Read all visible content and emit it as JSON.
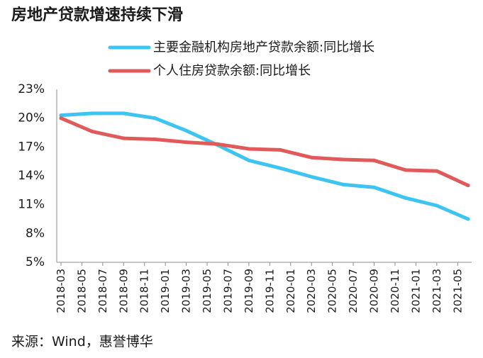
{
  "source": "来源：Wind，惠誉博华",
  "chart_data": {
    "type": "line",
    "title": "房地产贷款增速持续下滑",
    "legend_position": "top",
    "grid": false,
    "xlim": [
      "2018-03",
      "2021-06"
    ],
    "ylim": [
      5,
      23
    ],
    "y_ticks": [
      23,
      20,
      17,
      14,
      11,
      8,
      5
    ],
    "y_tick_labels": [
      "23%",
      "20%",
      "17%",
      "14%",
      "11%",
      "8%",
      "5%"
    ],
    "x_tick_labels": [
      "2018-03",
      "2018-05",
      "2018-07",
      "2018-09",
      "2018-11",
      "2019-01",
      "2019-03",
      "2019-05",
      "2019-07",
      "2019-09",
      "2019-11",
      "2020-01",
      "2020-03",
      "2020-05",
      "2020-07",
      "2020-09",
      "2020-11",
      "2021-01",
      "2021-03",
      "2021-05"
    ],
    "x": [
      "2018-03",
      "2018-06",
      "2018-09",
      "2018-12",
      "2019-03",
      "2019-06",
      "2019-09",
      "2019-12",
      "2020-03",
      "2020-06",
      "2020-09",
      "2020-12",
      "2021-03",
      "2021-06"
    ],
    "series": [
      {
        "name": "主要金融机构房地产贷款余额:同比增长",
        "color": "#3EC4F0",
        "values": [
          20.3,
          20.5,
          20.5,
          20.0,
          18.7,
          17.2,
          15.6,
          14.8,
          13.9,
          13.1,
          12.8,
          11.7,
          10.9,
          9.5
        ]
      },
      {
        "name": "个人住房贷款余额:同比增长",
        "color": "#E05A5A",
        "values": [
          20.0,
          18.6,
          17.9,
          17.8,
          17.5,
          17.3,
          16.8,
          16.7,
          15.9,
          15.7,
          15.6,
          14.6,
          14.5,
          13.0
        ]
      }
    ]
  }
}
